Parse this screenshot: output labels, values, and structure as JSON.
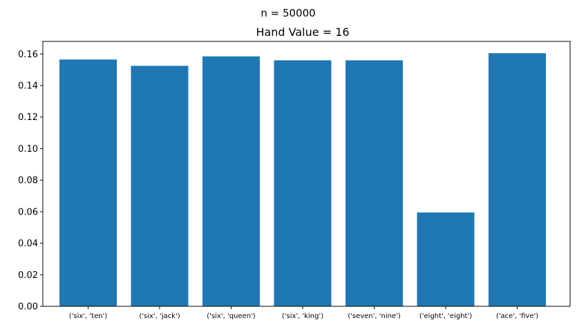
{
  "figure": {
    "suptitle": "n = 50000"
  },
  "chart_data": {
    "type": "bar",
    "title": "Hand Value = 16",
    "xlabel": "",
    "ylabel": "",
    "categories": [
      "('six', 'ten')",
      "('six', 'jack')",
      "('six', 'queen')",
      "('six', 'king')",
      "('seven', 'nine')",
      "('eight', 'eight')",
      "('ace', 'five')"
    ],
    "values": [
      0.1565,
      0.1525,
      0.1585,
      0.156,
      0.156,
      0.0595,
      0.1605
    ],
    "ylim": [
      0,
      0.168
    ],
    "yticks": [
      0.0,
      0.02,
      0.04,
      0.06,
      0.08,
      0.1,
      0.12,
      0.14,
      0.16
    ],
    "ytick_labels": [
      "0.00",
      "0.02",
      "0.04",
      "0.06",
      "0.08",
      "0.10",
      "0.12",
      "0.14",
      "0.16"
    ],
    "grid": false,
    "colors": {
      "bar": "#1f77b4",
      "axis": "#000000",
      "background": "#ffffff"
    }
  }
}
